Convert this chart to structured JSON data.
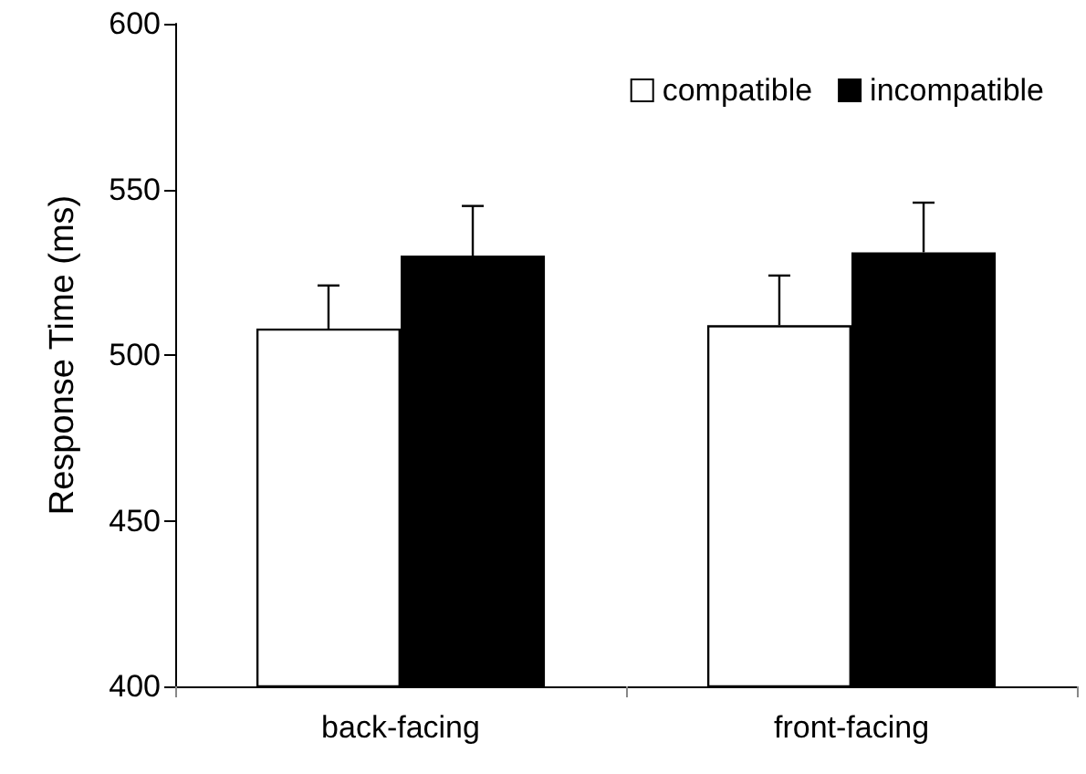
{
  "chart_data": {
    "type": "bar",
    "ylabel": "Response Time (ms)",
    "categories": [
      "back-facing",
      "front-facing"
    ],
    "series": [
      {
        "name": "compatible",
        "color": "#ffffff",
        "values": [
          508,
          509
        ],
        "errors": [
          [
            508,
            521
          ],
          [
            509,
            524
          ]
        ]
      },
      {
        "name": "incompatible",
        "color": "#000000",
        "values": [
          530,
          531
        ],
        "errors": [
          [
            530,
            545
          ],
          [
            531,
            546
          ]
        ]
      }
    ],
    "ylim": [
      400,
      600
    ],
    "yticks": [
      400,
      450,
      500,
      550,
      600
    ],
    "grid": false,
    "legend": "top right"
  }
}
